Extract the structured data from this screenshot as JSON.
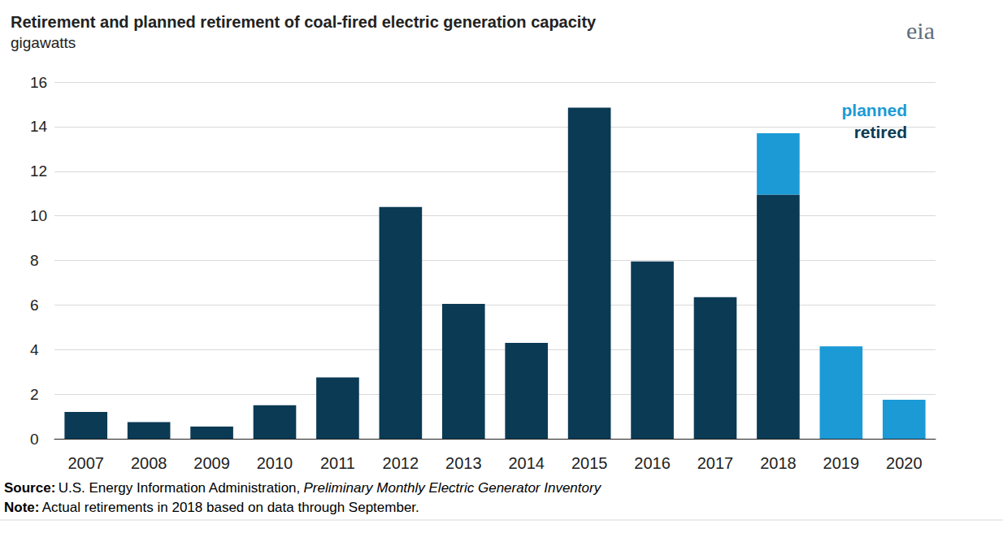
{
  "chart_data": {
    "type": "bar",
    "title": "Retirement and planned retirement of coal-fired electric generation capacity",
    "subtitle": "gigawatts",
    "logo": "eia",
    "categories": [
      "2007",
      "2008",
      "2009",
      "2010",
      "2011",
      "2012",
      "2013",
      "2014",
      "2015",
      "2016",
      "2017",
      "2018",
      "2019",
      "2020"
    ],
    "series": [
      {
        "name": "retired",
        "color": "#0b3a54",
        "values": [
          1.2,
          0.75,
          0.55,
          1.5,
          2.75,
          10.4,
          6.05,
          4.3,
          14.85,
          7.95,
          6.35,
          10.95,
          null,
          null
        ]
      },
      {
        "name": "planned",
        "color": "#1b9ad6",
        "values": [
          null,
          null,
          null,
          null,
          null,
          null,
          null,
          null,
          null,
          null,
          null,
          2.75,
          4.15,
          1.75
        ]
      }
    ],
    "stacked": true,
    "ylim": [
      0,
      16
    ],
    "yticks": [
      0,
      2,
      4,
      6,
      8,
      10,
      12,
      14,
      16
    ],
    "grid": true,
    "legend": "top-right",
    "source_label": "Source:",
    "source": "U.S. Energy Information Administration,",
    "source_link": "Preliminary Monthly Electric Generator Inventory",
    "note_label": "Note:",
    "note": "Actual retirements in 2018 based on data through September."
  }
}
